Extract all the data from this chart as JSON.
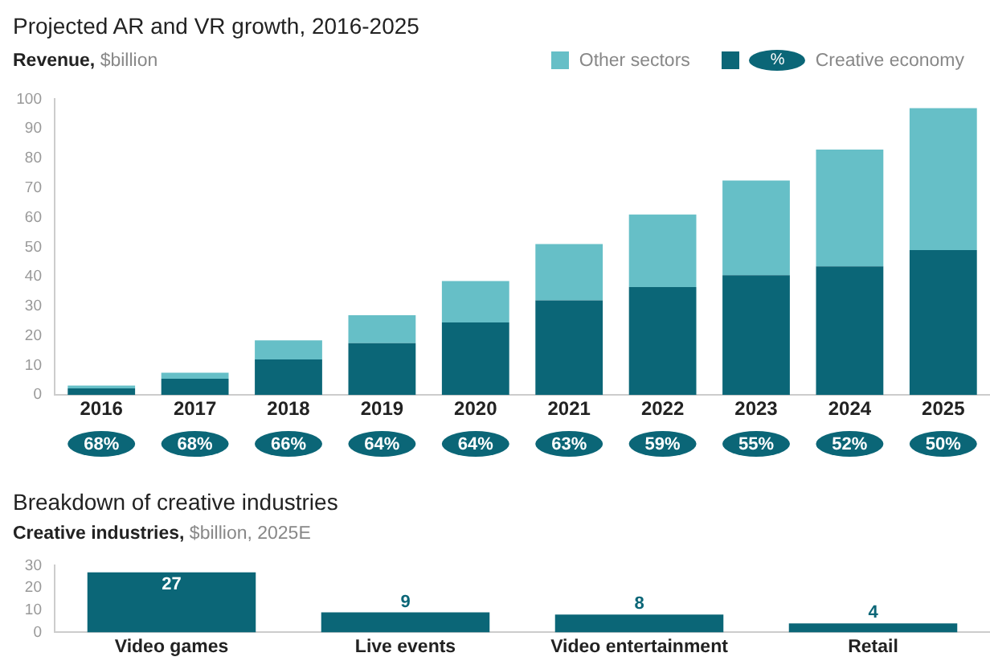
{
  "chart_data": [
    {
      "type": "bar",
      "title": "Projected AR and VR growth, 2016-2025",
      "ylabel": "Revenue, $billion",
      "categories": [
        "2016",
        "2017",
        "2018",
        "2019",
        "2020",
        "2021",
        "2022",
        "2023",
        "2024",
        "2025"
      ],
      "series": [
        {
          "name": "Creative economy",
          "color": "#0b6677",
          "values": [
            2.2,
            5.5,
            12,
            17.5,
            24.5,
            32,
            36.5,
            40.5,
            43.5,
            49
          ]
        },
        {
          "name": "Other sectors",
          "color": "#66bfc7",
          "values": [
            1,
            2,
            6.5,
            9.5,
            14,
            19,
            24.5,
            32,
            39.5,
            48
          ]
        }
      ],
      "stacked": true,
      "ylim": [
        0,
        100
      ],
      "yticks": [
        0,
        10,
        20,
        30,
        40,
        50,
        60,
        70,
        80,
        90,
        100
      ],
      "grid": false,
      "legend": "top right",
      "annotations": [
        "%",
        "68%",
        "68%",
        "66%",
        "64%",
        "64%",
        "63%",
        "59%",
        "55%",
        "52%",
        "50%"
      ]
    },
    {
      "type": "bar",
      "title": "Breakdown of creative industries",
      "ylabel": "Creative industries, $billion, 2025E",
      "categories": [
        "Video games",
        "Live events",
        "Video entertainment",
        "Retail"
      ],
      "values": [
        27,
        9,
        8,
        4
      ],
      "color": "#0b6677",
      "data_labels": true,
      "ylim": [
        0,
        30
      ],
      "yticks": [
        0,
        10,
        20,
        30
      ],
      "grid": false
    }
  ]
}
